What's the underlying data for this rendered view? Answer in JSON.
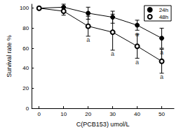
{
  "chart_data": {
    "type": "line",
    "x_label": "C(PCB153) umol/L",
    "y_label": "Survival rate %",
    "xlim": [
      -3,
      55
    ],
    "xticks": [
      0,
      10,
      20,
      30,
      40,
      50
    ],
    "ylim": [
      0,
      104
    ],
    "yticks": [
      0,
      20,
      40,
      60,
      80,
      100
    ],
    "grid": false,
    "legend": "upper right",
    "series": [
      {
        "name": "24h",
        "color": "#000000",
        "marker": "filled circle",
        "line_style": "solid",
        "x": [
          0,
          10,
          20,
          30,
          40,
          50
        ],
        "values": [
          100,
          101,
          95,
          91,
          83,
          70
        ],
        "error": [
          0,
          3,
          6,
          6,
          5,
          10
        ]
      },
      {
        "name": "48h",
        "color": "#000000",
        "marker": "open circle",
        "line_style": "solid",
        "x": [
          0,
          10,
          20,
          30,
          40,
          50
        ],
        "values": [
          100,
          97,
          82,
          76,
          62,
          47
        ],
        "error": [
          0,
          4,
          10,
          18,
          12,
          12
        ]
      }
    ],
    "annotations": [
      {
        "series": "48h",
        "x": 20,
        "text": "a"
      },
      {
        "series": "48h",
        "x": 30,
        "text": "a"
      },
      {
        "series": "24h",
        "x": 40,
        "text": "a"
      },
      {
        "series": "48h",
        "x": 40,
        "text": "a"
      },
      {
        "series": "24h",
        "x": 50,
        "text": "a"
      },
      {
        "series": "48h",
        "x": 50,
        "text": "a"
      }
    ]
  }
}
